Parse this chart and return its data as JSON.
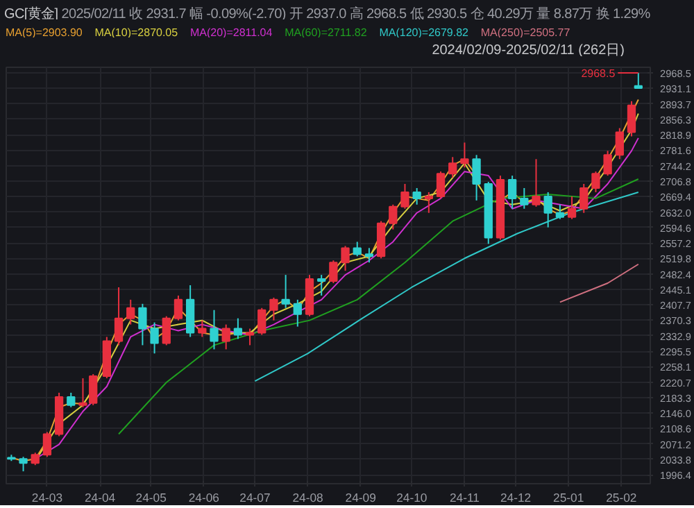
{
  "chart_data": {
    "type": "candlestick",
    "title": "GC[黄金]",
    "annotations": [
      "2025/02/11",
      "收 2931.7",
      "幅 -0.09%(-2.70)",
      "开 2937.0",
      "高 2968.5",
      "低 2930.5",
      "仓 40.29万",
      "量 8.87万",
      "换 1.29%",
      "2024/02/09-2025/02/11 (262日)",
      {
        "text": "2968.5",
        "x": "2025-02-11",
        "y": 2968.5
      }
    ],
    "x": [
      "2024-02-09",
      "2024-02-16",
      "2024-02-23",
      "2024-03-01",
      "2024-03-08",
      "2024-03-15",
      "2024-03-22",
      "2024-03-28",
      "2024-04-05",
      "2024-04-12",
      "2024-04-19",
      "2024-04-26",
      "2024-05-03",
      "2024-05-10",
      "2024-05-17",
      "2024-05-24",
      "2024-05-31",
      "2024-06-07",
      "2024-06-14",
      "2024-06-21",
      "2024-06-28",
      "2024-07-05",
      "2024-07-12",
      "2024-07-19",
      "2024-07-26",
      "2024-08-02",
      "2024-08-09",
      "2024-08-16",
      "2024-08-23",
      "2024-08-30",
      "2024-09-06",
      "2024-09-13",
      "2024-09-20",
      "2024-09-27",
      "2024-10-04",
      "2024-10-11",
      "2024-10-18",
      "2024-10-25",
      "2024-11-01",
      "2024-11-08",
      "2024-11-15",
      "2024-11-22",
      "2024-11-29",
      "2024-12-06",
      "2024-12-13",
      "2024-12-20",
      "2024-12-27",
      "2025-01-03",
      "2025-01-10",
      "2025-01-17",
      "2025-01-24",
      "2025-01-31",
      "2025-02-07",
      "2025-02-11"
    ],
    "ohlc": [
      [
        2038,
        2045,
        2030,
        2035
      ],
      [
        2035,
        2040,
        2005,
        2025
      ],
      [
        2025,
        2050,
        2020,
        2045
      ],
      [
        2045,
        2100,
        2040,
        2095
      ],
      [
        2095,
        2195,
        2090,
        2185
      ],
      [
        2185,
        2195,
        2160,
        2165
      ],
      [
        2165,
        2230,
        2160,
        2170
      ],
      [
        2170,
        2240,
        2165,
        2235
      ],
      [
        2235,
        2330,
        2230,
        2320
      ],
      [
        2320,
        2450,
        2310,
        2375
      ],
      [
        2375,
        2420,
        2360,
        2400
      ],
      [
        2400,
        2410,
        2310,
        2350
      ],
      [
        2350,
        2365,
        2290,
        2315
      ],
      [
        2315,
        2380,
        2310,
        2375
      ],
      [
        2375,
        2430,
        2370,
        2420
      ],
      [
        2420,
        2455,
        2330,
        2340
      ],
      [
        2340,
        2370,
        2330,
        2350
      ],
      [
        2350,
        2395,
        2300,
        2320
      ],
      [
        2320,
        2360,
        2300,
        2350
      ],
      [
        2350,
        2375,
        2325,
        2335
      ],
      [
        2335,
        2350,
        2310,
        2340
      ],
      [
        2340,
        2400,
        2335,
        2395
      ],
      [
        2395,
        2425,
        2370,
        2420
      ],
      [
        2420,
        2480,
        2400,
        2410
      ],
      [
        2410,
        2420,
        2355,
        2385
      ],
      [
        2385,
        2480,
        2380,
        2470
      ],
      [
        2470,
        2480,
        2430,
        2465
      ],
      [
        2465,
        2515,
        2460,
        2510
      ],
      [
        2510,
        2550,
        2490,
        2545
      ],
      [
        2545,
        2560,
        2525,
        2530
      ],
      [
        2530,
        2545,
        2510,
        2525
      ],
      [
        2525,
        2610,
        2520,
        2605
      ],
      [
        2605,
        2650,
        2590,
        2645
      ],
      [
        2645,
        2700,
        2640,
        2680
      ],
      [
        2680,
        2690,
        2650,
        2665
      ],
      [
        2665,
        2680,
        2630,
        2670
      ],
      [
        2670,
        2730,
        2665,
        2725
      ],
      [
        2725,
        2765,
        2715,
        2750
      ],
      [
        2750,
        2800,
        2740,
        2760
      ],
      [
        2760,
        2770,
        2660,
        2700
      ],
      [
        2700,
        2705,
        2555,
        2570
      ],
      [
        2570,
        2720,
        2565,
        2710
      ],
      [
        2710,
        2720,
        2640,
        2665
      ],
      [
        2665,
        2690,
        2640,
        2650
      ],
      [
        2650,
        2760,
        2645,
        2670
      ],
      [
        2670,
        2680,
        2595,
        2630
      ],
      [
        2630,
        2650,
        2615,
        2620
      ],
      [
        2620,
        2670,
        2615,
        2640
      ],
      [
        2640,
        2700,
        2630,
        2690
      ],
      [
        2690,
        2730,
        2680,
        2725
      ],
      [
        2725,
        2780,
        2720,
        2770
      ],
      [
        2770,
        2835,
        2760,
        2825
      ],
      [
        2825,
        2900,
        2815,
        2890
      ],
      [
        2937,
        2968.5,
        2930.5,
        2931.7
      ]
    ],
    "colors": [
      "#2fd0d0",
      "#2fd0d0",
      "#e8303f",
      "#e8303f",
      "#e8303f",
      "#2fd0d0",
      "#e8303f",
      "#e8303f",
      "#e8303f",
      "#e8303f",
      "#e8303f",
      "#2fd0d0",
      "#2fd0d0",
      "#e8303f",
      "#e8303f",
      "#2fd0d0",
      "#e8303f",
      "#2fd0d0",
      "#e8303f",
      "#2fd0d0",
      "#e8303f",
      "#e8303f",
      "#e8303f",
      "#2fd0d0",
      "#2fd0d0",
      "#e8303f",
      "#2fd0d0",
      "#e8303f",
      "#e8303f",
      "#2fd0d0",
      "#2fd0d0",
      "#e8303f",
      "#e8303f",
      "#e8303f",
      "#2fd0d0",
      "#e8303f",
      "#e8303f",
      "#e8303f",
      "#e8303f",
      "#2fd0d0",
      "#2fd0d0",
      "#e8303f",
      "#2fd0d0",
      "#2fd0d0",
      "#e8303f",
      "#2fd0d0",
      "#2fd0d0",
      "#e8303f",
      "#e8303f",
      "#e8303f",
      "#e8303f",
      "#e8303f",
      "#e8303f",
      "#2fd0d0"
    ],
    "series": [
      {
        "name": "MA(5)=2903.90",
        "type": "line",
        "color": "#e8a030",
        "x": [
          "2024-02-09",
          "2024-02-16",
          "2024-02-23",
          "2024-03-01",
          "2024-03-08",
          "2024-03-15",
          "2024-03-22",
          "2024-03-28",
          "2024-04-05",
          "2024-04-12",
          "2024-04-19",
          "2024-04-26",
          "2024-05-03",
          "2024-05-10",
          "2024-05-17",
          "2024-05-24",
          "2024-05-31",
          "2024-06-07",
          "2024-06-14",
          "2024-06-21",
          "2024-06-28",
          "2024-07-05",
          "2024-07-12",
          "2024-07-19",
          "2024-07-26",
          "2024-08-02",
          "2024-08-09",
          "2024-08-16",
          "2024-08-23",
          "2024-08-30",
          "2024-09-06",
          "2024-09-13",
          "2024-09-20",
          "2024-09-27",
          "2024-10-04",
          "2024-10-11",
          "2024-10-18",
          "2024-10-25",
          "2024-11-01",
          "2024-11-08",
          "2024-11-15",
          "2024-11-22",
          "2024-11-29",
          "2024-12-06",
          "2024-12-13",
          "2024-12-20",
          "2024-12-27",
          "2025-01-03",
          "2025-01-10",
          "2025-01-17",
          "2025-01-24",
          "2025-01-31",
          "2025-02-07",
          "2025-02-11"
        ],
        "values": [
          2038,
          2030,
          2035,
          2080,
          2160,
          2170,
          2168,
          2200,
          2290,
          2360,
          2385,
          2370,
          2325,
          2345,
          2400,
          2370,
          2340,
          2335,
          2335,
          2340,
          2335,
          2370,
          2405,
          2420,
          2395,
          2440,
          2460,
          2490,
          2525,
          2535,
          2520,
          2580,
          2630,
          2670,
          2665,
          2660,
          2700,
          2745,
          2760,
          2720,
          null,
          2660,
          2680,
          2655,
          2665,
          2640,
          2625,
          2635,
          2675,
          2715,
          2760,
          2810,
          2870,
          2903.9
        ]
      },
      {
        "name": "MA(10)=2870.05",
        "type": "line",
        "color": "#d8d040",
        "x": [
          "2024-02-23",
          "2024-03-08",
          "2024-03-22",
          "2024-04-05",
          "2024-04-19",
          "2024-05-03",
          "2024-05-17",
          "2024-05-31",
          "2024-06-14",
          "2024-06-28",
          "2024-07-12",
          "2024-07-26",
          "2024-08-09",
          "2024-08-23",
          "2024-09-06",
          "2024-09-20",
          "2024-10-04",
          "2024-10-18",
          "2024-11-01",
          "2024-11-15",
          "2024-11-29",
          "2024-12-13",
          "2024-12-27",
          "2025-01-10",
          "2025-01-24",
          "2025-02-07",
          "2025-02-11"
        ],
        "values": [
          2030,
          2120,
          2165,
          2260,
          2370,
          2350,
          2360,
          2370,
          2340,
          2340,
          2385,
          2410,
          2440,
          2510,
          2525,
          2600,
          2665,
          2680,
          2750,
          2660,
          2650,
          2660,
          2635,
          2660,
          2740,
          2830,
          2870.05
        ]
      },
      {
        "name": "MA(20)=2811.04",
        "type": "line",
        "color": "#d030d0",
        "x": [
          "2024-02-23",
          "2024-03-08",
          "2024-03-22",
          "2024-04-05",
          "2024-04-19",
          "2024-05-03",
          "2024-05-17",
          "2024-05-31",
          "2024-06-14",
          "2024-06-28",
          "2024-07-12",
          "2024-07-26",
          "2024-08-09",
          "2024-08-23",
          "2024-09-06",
          "2024-09-20",
          "2024-10-04",
          "2024-10-18",
          "2024-11-01",
          "2024-11-15",
          "2024-11-29",
          "2024-12-13",
          "2024-12-27",
          "2025-01-10",
          "2025-01-24",
          "2025-02-07",
          "2025-02-11"
        ],
        "values": [
          2035,
          2070,
          2150,
          2210,
          2330,
          2360,
          2345,
          2360,
          2345,
          2335,
          2360,
          2390,
          2420,
          2480,
          2515,
          2560,
          2630,
          2665,
          2730,
          2720,
          2640,
          2660,
          2650,
          2640,
          2700,
          2780,
          2811.04
        ]
      },
      {
        "name": "MA(60)=2711.82",
        "type": "line",
        "color": "#20a020",
        "x": [
          "2024-04-12",
          "2024-05-10",
          "2024-06-07",
          "2024-07-05",
          "2024-08-02",
          "2024-08-30",
          "2024-09-27",
          "2024-10-25",
          "2024-11-22",
          "2024-12-20",
          "2025-01-17",
          "2025-02-11"
        ],
        "values": [
          2095,
          2220,
          2310,
          2345,
          2370,
          2420,
          2510,
          2610,
          2665,
          2675,
          2665,
          2711.82
        ]
      },
      {
        "name": "MA(120)=2679.82",
        "type": "line",
        "color": "#30c8c8",
        "x": [
          "2024-07-01",
          "2024-08-01",
          "2024-09-02",
          "2024-10-01",
          "2024-11-01",
          "2024-12-02",
          "2025-01-02",
          "2025-02-11"
        ],
        "values": [
          2223,
          2290,
          2375,
          2450,
          2520,
          2580,
          2630,
          2679.82
        ]
      },
      {
        "name": "MA(250)=2505.77",
        "type": "line",
        "color": "#d07080",
        "x": [
          "2024-12-27",
          "2025-01-24",
          "2025-02-11"
        ],
        "values": [
          2414,
          2460,
          2505.77
        ]
      }
    ],
    "xlim": [
      "2024-02-06",
      "2025-02-18"
    ],
    "xticks": [
      {
        "value": "2024-03-01",
        "label": "24-03"
      },
      {
        "value": "2024-04-01",
        "label": "24-04"
      },
      {
        "value": "2024-05-01",
        "label": "24-05"
      },
      {
        "value": "2024-06-01",
        "label": "24-06"
      },
      {
        "value": "2024-07-01",
        "label": "24-07"
      },
      {
        "value": "2024-08-01",
        "label": "24-08"
      },
      {
        "value": "2024-09-01",
        "label": "24-09"
      },
      {
        "value": "2024-10-01",
        "label": "24-10"
      },
      {
        "value": "2024-11-01",
        "label": "24-11"
      },
      {
        "value": "2024-12-01",
        "label": "24-12"
      },
      {
        "value": "2025-01-01",
        "label": "25-01"
      },
      {
        "value": "2025-02-01",
        "label": "25-02"
      }
    ],
    "ylim": [
      1975,
      2982
    ],
    "yticks": [
      {
        "value": 1996.4,
        "label": "1996.4"
      },
      {
        "value": 2033.8,
        "label": "2033.8"
      },
      {
        "value": 2071.2,
        "label": "2071.2"
      },
      {
        "value": 2108.6,
        "label": "2108.6"
      },
      {
        "value": 2146.0,
        "label": "2146.0"
      },
      {
        "value": 2183.3,
        "label": "2183.3"
      },
      {
        "value": 2220.7,
        "label": "2220.7"
      },
      {
        "value": 2258.1,
        "label": "2258.1"
      },
      {
        "value": 2295.5,
        "label": "2295.5"
      },
      {
        "value": 2332.9,
        "label": "2332.9"
      },
      {
        "value": 2370.3,
        "label": "2370.3"
      },
      {
        "value": 2407.7,
        "label": "2407.7"
      },
      {
        "value": 2445.1,
        "label": "2445.1"
      },
      {
        "value": 2482.4,
        "label": "2482.4"
      },
      {
        "value": 2519.8,
        "label": "2519.8"
      },
      {
        "value": 2557.2,
        "label": "2557.2"
      },
      {
        "value": 2594.6,
        "label": "2594.6"
      },
      {
        "value": 2632.0,
        "label": "2632.0"
      },
      {
        "value": 2669.4,
        "label": "2669.4"
      },
      {
        "value": 2706.8,
        "label": "2706.8"
      },
      {
        "value": 2744.2,
        "label": "2744.2"
      },
      {
        "value": 2781.6,
        "label": "2781.6"
      },
      {
        "value": 2818.9,
        "label": "2818.9"
      },
      {
        "value": 2856.3,
        "label": "2856.3"
      },
      {
        "value": 2893.7,
        "label": "2893.7"
      },
      {
        "value": 2931.1,
        "label": "2931.1"
      },
      {
        "value": 2968.5,
        "label": "2968.5"
      }
    ],
    "grid": true,
    "legend": "top left"
  }
}
